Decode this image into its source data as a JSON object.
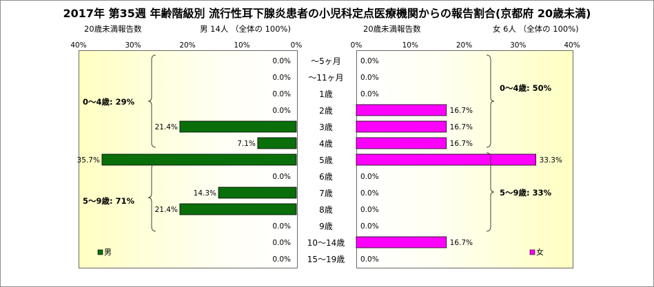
{
  "title": "2017年 第35週 年齢階級別 流行性耳下腺炎患者の小児科定点医療機関からの報告割合(京都府 20歳未満)",
  "left_header": {
    "caption": "20歳未満報告数",
    "summary": "男  14人 （全体の  100%)"
  },
  "right_header": {
    "caption": "20歳未満報告数",
    "summary": "女  6人 （全体の  100%)"
  },
  "colors": {
    "male": "#0a6f0a",
    "female": "#ff00ff"
  },
  "chart_data": [
    {
      "type": "bar",
      "orientation": "horizontal",
      "direction": "right-to-left",
      "categories": [
        "～5ヶ月",
        "～11ヶ月",
        "1歳",
        "2歳",
        "3歳",
        "4歳",
        "5歳",
        "6歳",
        "7歳",
        "8歳",
        "9歳",
        "10～14歳",
        "15～19歳"
      ],
      "series": [
        {
          "name": "男",
          "values": [
            0.0,
            0.0,
            0.0,
            0.0,
            21.4,
            7.1,
            35.7,
            0.0,
            14.3,
            21.4,
            0.0,
            0.0,
            0.0
          ]
        }
      ],
      "value_labels": [
        "0.0%",
        "0.0%",
        "0.0%",
        "0.0%",
        "21.4%",
        "7.1%",
        "35.7%",
        "0.0%",
        "14.3%",
        "21.4%",
        "0.0%",
        "0.0%",
        "0.0%"
      ],
      "xlim": [
        0,
        40
      ],
      "xticks": [
        "40%",
        "30%",
        "20%",
        "10%",
        "0%"
      ],
      "legend": {
        "label": "男",
        "placement": "bottom-left"
      },
      "annotations": [
        {
          "text": "0～4歳: 29%"
        },
        {
          "text": "5～9歳: 71%"
        }
      ]
    },
    {
      "type": "bar",
      "orientation": "horizontal",
      "direction": "left-to-right",
      "categories": [
        "～5ヶ月",
        "～11ヶ月",
        "1歳",
        "2歳",
        "3歳",
        "4歳",
        "5歳",
        "6歳",
        "7歳",
        "8歳",
        "9歳",
        "10～14歳",
        "15～19歳"
      ],
      "series": [
        {
          "name": "女",
          "values": [
            0.0,
            0.0,
            0.0,
            16.7,
            16.7,
            16.7,
            33.3,
            0.0,
            0.0,
            0.0,
            0.0,
            16.7,
            0.0
          ]
        }
      ],
      "value_labels": [
        "0.0%",
        "0.0%",
        "0.0%",
        "16.7%",
        "16.7%",
        "16.7%",
        "33.3%",
        "0.0%",
        "0.0%",
        "0.0%",
        "0.0%",
        "16.7%",
        "0.0%"
      ],
      "xlim": [
        0,
        40
      ],
      "xticks": [
        "0%",
        "10%",
        "20%",
        "30%",
        "40%"
      ],
      "legend": {
        "label": "女",
        "placement": "bottom-right"
      },
      "annotations": [
        {
          "text": "0～4歳: 50%"
        },
        {
          "text": "5～9歳: 33%"
        }
      ]
    }
  ]
}
